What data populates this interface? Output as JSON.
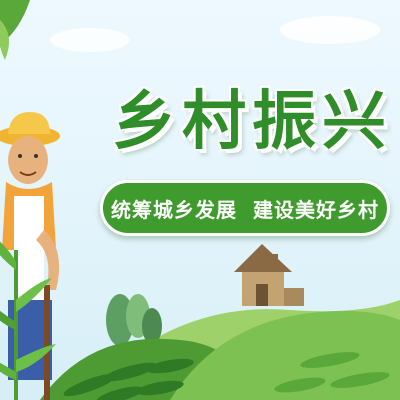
{
  "poster": {
    "title": "乡村振兴",
    "slogan": "统筹城乡发展  建设美好乡村"
  },
  "colors": {
    "sky": "#e3f4fb",
    "title_green": "#2f8d2a",
    "banner_green": "#3f9b2d",
    "field_light": "#7cc152",
    "field_dark": "#4e9b34",
    "hat": "#f0b530"
  },
  "icons": [
    "farmer-illustration",
    "farmhouse-icon",
    "bush-icon",
    "corn-plant-icon",
    "hills-illustration",
    "leaf-icon"
  ]
}
